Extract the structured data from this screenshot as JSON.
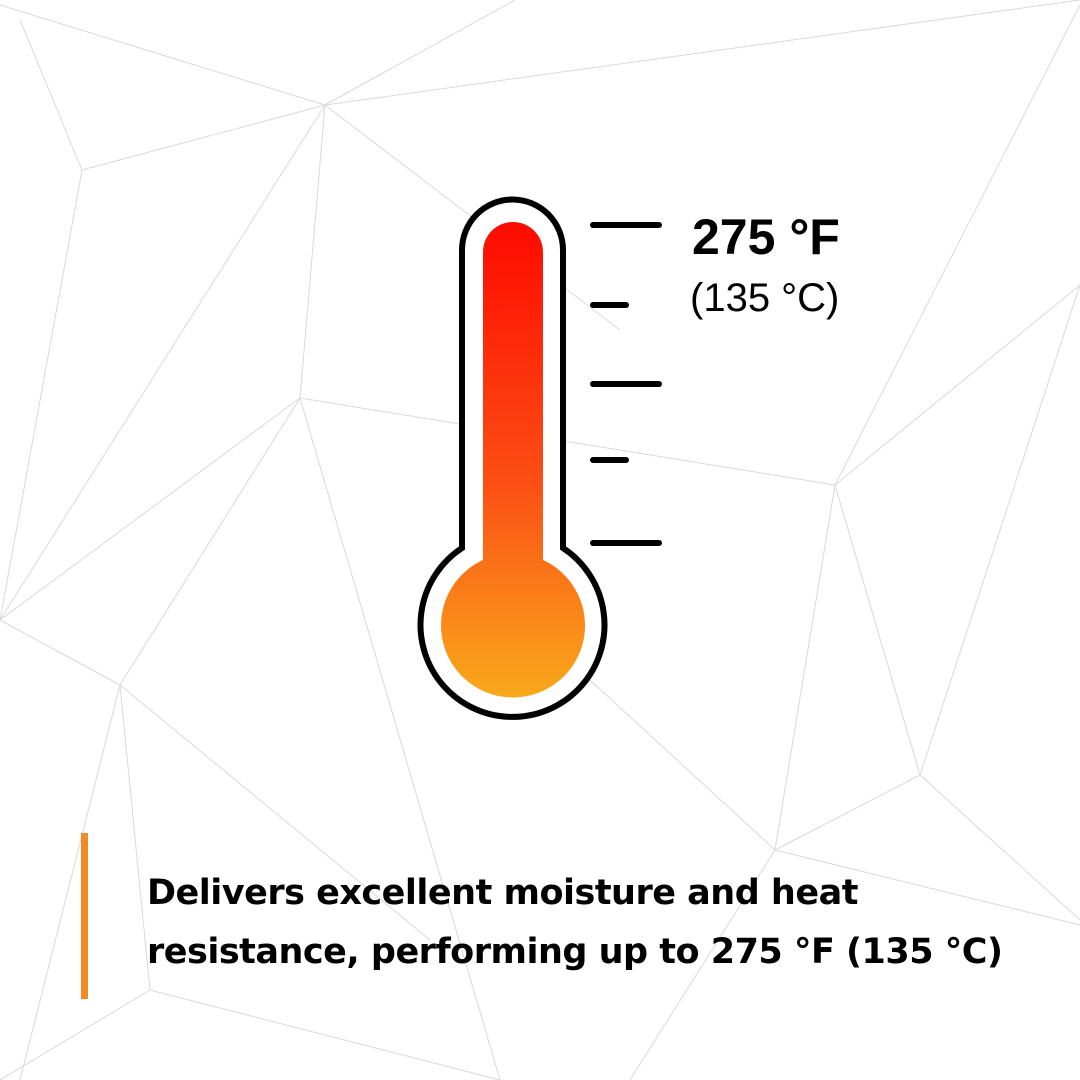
{
  "colors": {
    "accent": "#f28a26",
    "thermometer_top": "#ff0a00",
    "thermometer_bottom": "#f9a91b",
    "outline": "#000000",
    "background_lines": "#d9d9d9"
  },
  "thermometer": {
    "icon": "thermometer-icon",
    "label_fahrenheit": "275 °F",
    "label_celsius": "(135 °C)"
  },
  "caption": {
    "line1": "Delivers excellent moisture and heat",
    "line2": "resistance, performing up to 275 °F (135 °C)"
  }
}
